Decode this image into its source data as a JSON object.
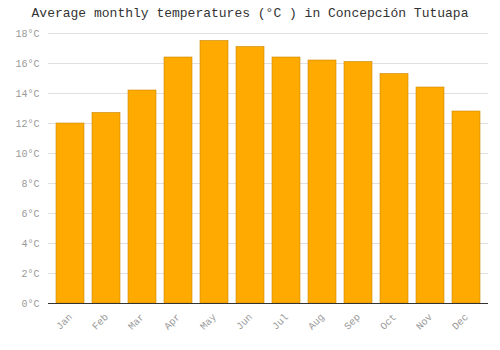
{
  "chart_data": {
    "type": "bar",
    "title": "Average monthly temperatures (°C ) in Concepción Tutuapa",
    "categories": [
      "Jan",
      "Feb",
      "Mar",
      "Apr",
      "May",
      "Jun",
      "Jul",
      "Aug",
      "Sep",
      "Oct",
      "Nov",
      "Dec"
    ],
    "values": [
      12.0,
      12.7,
      14.2,
      16.4,
      17.5,
      17.1,
      16.4,
      16.2,
      16.1,
      15.3,
      14.4,
      12.8
    ],
    "color": "#FFAA00",
    "ylim": [
      0,
      18
    ],
    "yticks": [
      {
        "value": 0,
        "label": "0°C"
      },
      {
        "value": 2,
        "label": "2°C"
      },
      {
        "value": 4,
        "label": "4°C"
      },
      {
        "value": 6,
        "label": "6°C"
      },
      {
        "value": 8,
        "label": "8°C"
      },
      {
        "value": 10,
        "label": "10°C"
      },
      {
        "value": 12,
        "label": "12°C"
      },
      {
        "value": 14,
        "label": "14°C"
      },
      {
        "value": 16,
        "label": "16°C"
      },
      {
        "value": 18,
        "label": "18°C"
      }
    ],
    "grid": true
  }
}
